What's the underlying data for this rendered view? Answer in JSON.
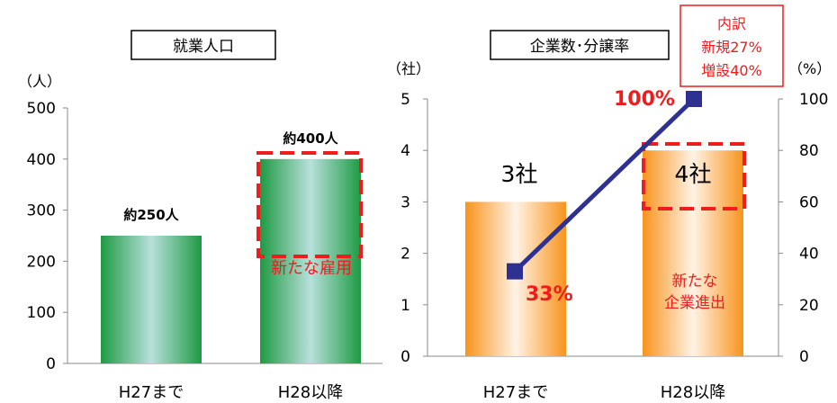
{
  "chart_data": [
    {
      "type": "bar",
      "title": "就業人口",
      "ylabel": "（人）",
      "ylim": [
        0,
        500
      ],
      "yticks": [
        "0",
        "100",
        "200",
        "300",
        "400",
        "500"
      ],
      "categories": [
        "H27まで",
        "H28以降"
      ],
      "values": [
        250,
        400
      ],
      "data_labels": [
        "約250人",
        "約400人"
      ],
      "annotation": "新たな雇用",
      "colors": {
        "bar": "#2ea84f",
        "highlight_box": "#ee1c1c"
      }
    },
    {
      "type": "bar+line",
      "title": "企業数･分譲率",
      "ylabel_left": "（社）",
      "ylabel_right": "（%）",
      "ylim_left": [
        0,
        5
      ],
      "ylim_right": [
        0,
        100
      ],
      "yticks_left": [
        "0",
        "1",
        "2",
        "3",
        "4",
        "5"
      ],
      "yticks_right": [
        "0",
        "20",
        "40",
        "60",
        "80",
        "100"
      ],
      "categories": [
        "H27まで",
        "H28以降"
      ],
      "bar_values": [
        3,
        4
      ],
      "bar_labels": [
        "3社",
        "4社"
      ],
      "line_values": [
        33,
        100
      ],
      "line_labels": [
        "33%",
        "100%"
      ],
      "annotation": "新たな\n企業進出",
      "callout": [
        "内訳",
        "新規27%",
        "増設40%"
      ],
      "colors": {
        "bar": "#f7941d",
        "line": "#2e3192",
        "highlight": "#ee1c1c"
      }
    }
  ]
}
